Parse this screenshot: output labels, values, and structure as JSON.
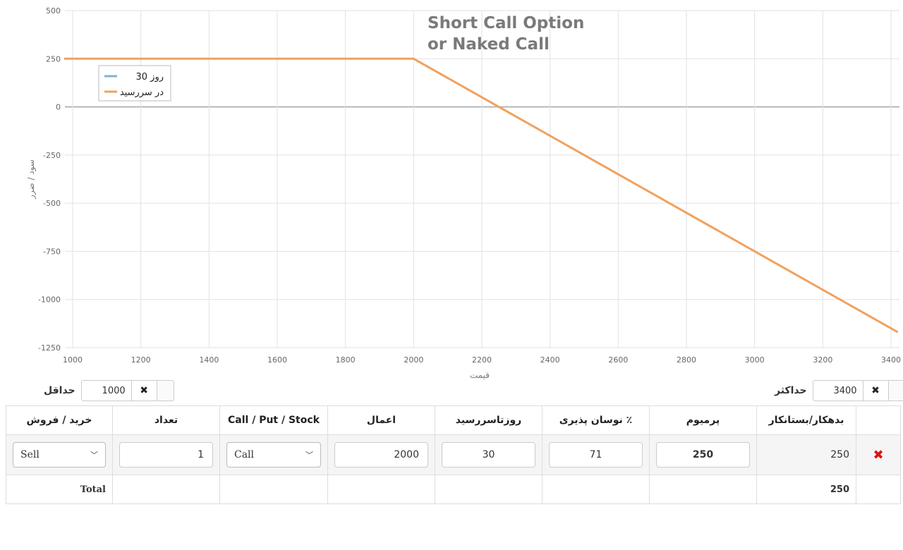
{
  "chart_data": {
    "type": "line",
    "title": [
      "Short Call Option",
      "or Naked Call"
    ],
    "xlabel": "قیمت",
    "ylabel": "سود / ضرر",
    "xlim": [
      1000,
      3420
    ],
    "ylim": [
      -1250,
      500
    ],
    "xticks": [
      1000,
      1200,
      1400,
      1600,
      1800,
      2000,
      2200,
      2400,
      2600,
      2800,
      3000,
      3200,
      3400
    ],
    "yticks": [
      500,
      250,
      0,
      -250,
      -500,
      -750,
      -1000,
      -1250
    ],
    "grid": true,
    "legend": "top-left",
    "series": [
      {
        "name": "روز 30",
        "color": "#7fb2d8",
        "x": [],
        "y": []
      },
      {
        "name": "در سررسید",
        "color": "#f0a15e",
        "x": [
          975,
          2000,
          3420
        ],
        "y": [
          250,
          250,
          -1170
        ]
      }
    ]
  },
  "controls": {
    "min_label": "حداقل",
    "min_value": "1000",
    "max_label": "حداکثر",
    "max_value": "3400",
    "clear_glyph": "✖"
  },
  "table": {
    "headers": {
      "side": "خرید / فروش",
      "qty": "تعداد",
      "type": "Call / Put / Stock",
      "strike": "اعمال",
      "days": "روزتاسررسید",
      "vol": "٪ نوسان پذیری",
      "premium": "پرمیوم",
      "debit": "بدهکار/بستانکار"
    },
    "row": {
      "side": "Sell",
      "qty": "1",
      "type": "Call",
      "strike": "2000",
      "days": "30",
      "vol": "71",
      "premium": "250",
      "debit": "250",
      "delete_glyph": "✖"
    },
    "total": {
      "label": "Total",
      "value": "250"
    }
  }
}
